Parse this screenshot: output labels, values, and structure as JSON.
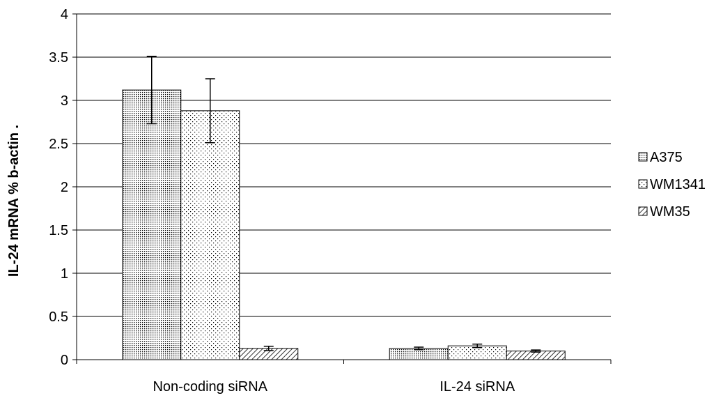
{
  "chart_data": {
    "type": "bar",
    "categories": [
      "Non-coding siRNA",
      "IL-24 siRNA"
    ],
    "series": [
      {
        "name": "A375",
        "values": [
          3.12,
          0.13
        ],
        "errors": [
          0.39,
          0.015
        ],
        "pattern": "dense-dots"
      },
      {
        "name": "WM1341",
        "values": [
          2.88,
          0.16
        ],
        "errors": [
          0.37,
          0.02
        ],
        "pattern": "sparse-dots"
      },
      {
        "name": "WM35",
        "values": [
          0.13,
          0.1
        ],
        "errors": [
          0.025,
          0.012
        ],
        "pattern": "diagonal-hatch"
      }
    ],
    "xlabel": "",
    "ylabel": "IL-24 mRNA % b-actin   .",
    "ylim": [
      0,
      4
    ],
    "yticks": [
      "0",
      "0.5",
      "1",
      "1.5",
      "2",
      "2.5",
      "3",
      "3.5",
      "4"
    ],
    "grid": true,
    "legend_position": "right",
    "colors": {
      "bar_stroke": "#000000",
      "grid": "#000000",
      "background": "#ffffff"
    }
  }
}
